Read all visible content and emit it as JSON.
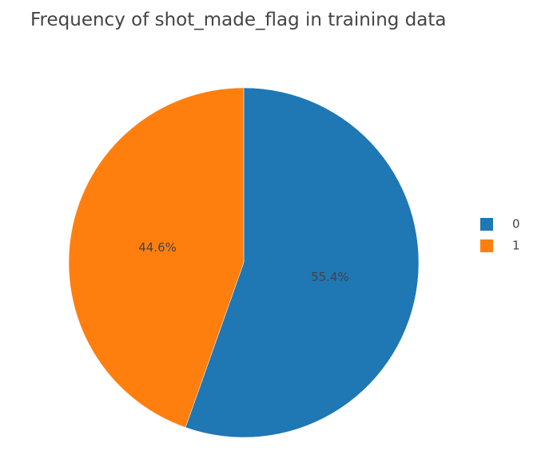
{
  "chart_data": {
    "type": "pie",
    "title": "Frequency of shot_made_flag in training data",
    "labels": [
      "0",
      "1"
    ],
    "values": [
      55.4,
      44.6
    ],
    "value_labels": [
      "55.4%",
      "44.6%"
    ],
    "colors": [
      "#1f77b4",
      "#ff7f0e"
    ],
    "legend": {
      "placement": "right",
      "entries": [
        "0",
        "1"
      ]
    },
    "direction": "clockwise",
    "start": "top"
  }
}
